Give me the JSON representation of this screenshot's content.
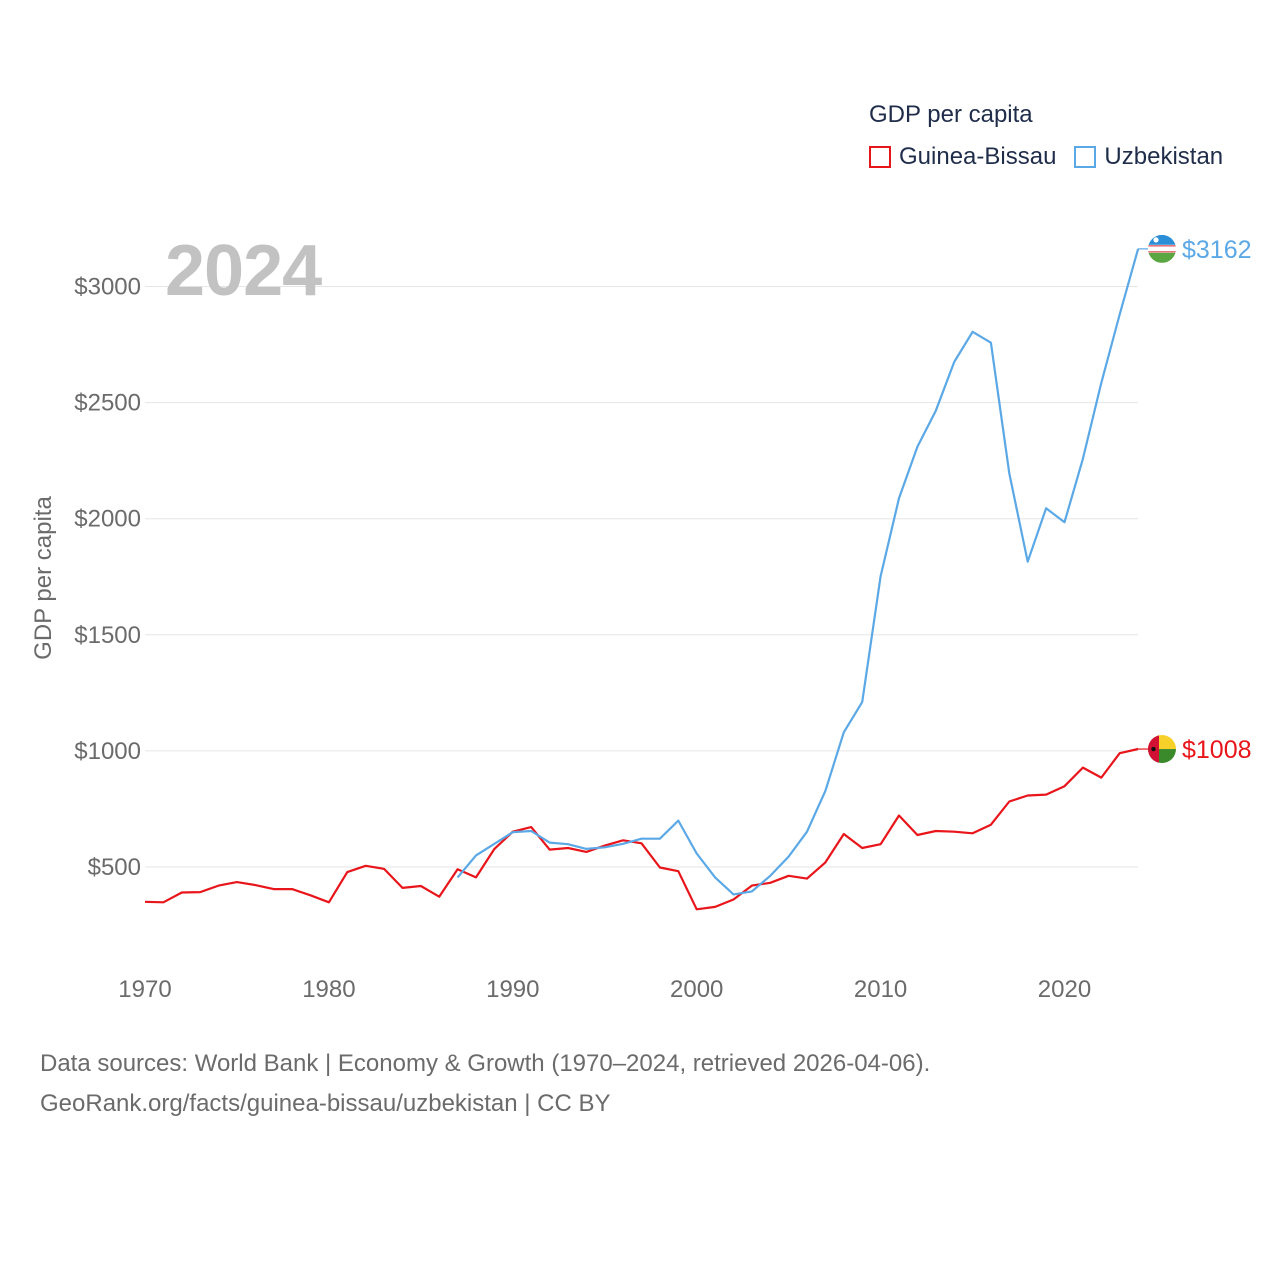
{
  "chart_data": {
    "type": "line",
    "title": "GDP per capita",
    "year_label": "2024",
    "ylabel": "GDP per capita",
    "xlabel": "",
    "xlim": [
      1970,
      2024
    ],
    "ylim": [
      150,
      3300
    ],
    "x_ticks": [
      1970,
      1980,
      1990,
      2000,
      2010,
      2020
    ],
    "y_ticks": [
      500,
      1000,
      1500,
      2000,
      2500,
      3000
    ],
    "y_tick_labels": [
      "$500",
      "$1000",
      "$1500",
      "$2000",
      "$2500",
      "$3000"
    ],
    "grid": true,
    "legend_position": "top-right",
    "series": [
      {
        "name": "Guinea-Bissau",
        "color": "#e8151b",
        "end_label": "$1008",
        "end_value": 1008,
        "flag_icon": "guinea-bissau-flag-icon",
        "points": [
          [
            1970,
            350
          ],
          [
            1971,
            348
          ],
          [
            1972,
            390
          ],
          [
            1973,
            392
          ],
          [
            1974,
            420
          ],
          [
            1975,
            435
          ],
          [
            1976,
            422
          ],
          [
            1977,
            405
          ],
          [
            1978,
            405
          ],
          [
            1979,
            378
          ],
          [
            1980,
            348
          ],
          [
            1981,
            478
          ],
          [
            1982,
            505
          ],
          [
            1983,
            492
          ],
          [
            1984,
            410
          ],
          [
            1985,
            418
          ],
          [
            1986,
            372
          ],
          [
            1987,
            490
          ],
          [
            1988,
            455
          ],
          [
            1989,
            578
          ],
          [
            1990,
            652
          ],
          [
            1991,
            672
          ],
          [
            1992,
            575
          ],
          [
            1993,
            582
          ],
          [
            1994,
            565
          ],
          [
            1995,
            592
          ],
          [
            1996,
            615
          ],
          [
            1997,
            602
          ],
          [
            1998,
            498
          ],
          [
            1999,
            482
          ],
          [
            2000,
            318
          ],
          [
            2001,
            328
          ],
          [
            2002,
            360
          ],
          [
            2003,
            420
          ],
          [
            2004,
            432
          ],
          [
            2005,
            462
          ],
          [
            2006,
            450
          ],
          [
            2007,
            520
          ],
          [
            2008,
            642
          ],
          [
            2009,
            582
          ],
          [
            2010,
            598
          ],
          [
            2011,
            722
          ],
          [
            2012,
            638
          ],
          [
            2013,
            655
          ],
          [
            2014,
            652
          ],
          [
            2015,
            645
          ],
          [
            2016,
            682
          ],
          [
            2017,
            782
          ],
          [
            2018,
            808
          ],
          [
            2019,
            812
          ],
          [
            2020,
            848
          ],
          [
            2021,
            928
          ],
          [
            2022,
            885
          ],
          [
            2023,
            990
          ],
          [
            2024,
            1008
          ]
        ]
      },
      {
        "name": "Uzbekistan",
        "color": "#5ba8e6",
        "end_label": "$3162",
        "end_value": 3162,
        "flag_icon": "uzbekistan-flag-icon",
        "points": [
          [
            1987,
            455
          ],
          [
            1988,
            550
          ],
          [
            1989,
            600
          ],
          [
            1990,
            650
          ],
          [
            1991,
            655
          ],
          [
            1992,
            605
          ],
          [
            1993,
            598
          ],
          [
            1994,
            578
          ],
          [
            1995,
            585
          ],
          [
            1996,
            600
          ],
          [
            1997,
            622
          ],
          [
            1998,
            622
          ],
          [
            1999,
            700
          ],
          [
            2000,
            558
          ],
          [
            2001,
            455
          ],
          [
            2002,
            382
          ],
          [
            2003,
            395
          ],
          [
            2004,
            462
          ],
          [
            2005,
            545
          ],
          [
            2006,
            652
          ],
          [
            2007,
            828
          ],
          [
            2008,
            1080
          ],
          [
            2009,
            1210
          ],
          [
            2010,
            1752
          ],
          [
            2011,
            2088
          ],
          [
            2012,
            2310
          ],
          [
            2013,
            2465
          ],
          [
            2014,
            2675
          ],
          [
            2015,
            2805
          ],
          [
            2016,
            2758
          ],
          [
            2017,
            2195
          ],
          [
            2018,
            1815
          ],
          [
            2019,
            2045
          ],
          [
            2020,
            1985
          ],
          [
            2021,
            2258
          ],
          [
            2022,
            2585
          ],
          [
            2023,
            2880
          ],
          [
            2024,
            3162
          ]
        ]
      }
    ]
  },
  "legend": {
    "title": "GDP per capita",
    "items": [
      "Guinea-Bissau",
      "Uzbekistan"
    ]
  },
  "footer": {
    "line1": "Data sources: World Bank | Economy & Growth (1970–2024, retrieved 2026-04-06).",
    "line2": "GeoRank.org/facts/guinea-bissau/uzbekistan | CC BY"
  }
}
